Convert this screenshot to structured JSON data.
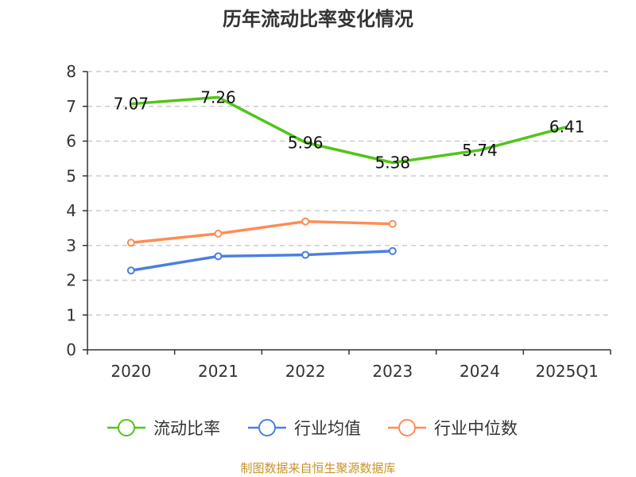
{
  "chart_data": {
    "type": "line",
    "title": "历年流动比率变化情况",
    "categories": [
      "2020",
      "2021",
      "2022",
      "2023",
      "2024",
      "2025Q1"
    ],
    "ylim": [
      0,
      8
    ],
    "yticks": [
      "0",
      "1",
      "2",
      "3",
      "4",
      "5",
      "6",
      "7",
      "8"
    ],
    "grid": true,
    "legend_position": "bottom",
    "series": [
      {
        "name": "流动比率",
        "color": "#52c41a",
        "values": [
          7.07,
          7.26,
          5.96,
          5.38,
          5.74,
          6.41
        ],
        "labels": [
          "7.07",
          "7.26",
          "5.96",
          "5.38",
          "5.74",
          "6.41"
        ],
        "markers": false
      },
      {
        "name": "行业均值",
        "color": "#4a7fe0",
        "values": [
          2.28,
          2.69,
          2.73,
          2.84,
          null,
          null
        ],
        "markers": true
      },
      {
        "name": "行业中位数",
        "color": "#ff8c55",
        "values": [
          3.08,
          3.34,
          3.69,
          3.62,
          null,
          null
        ],
        "markers": true
      }
    ]
  },
  "footer": {
    "source": "制图数据来自恒生聚源数据库"
  }
}
